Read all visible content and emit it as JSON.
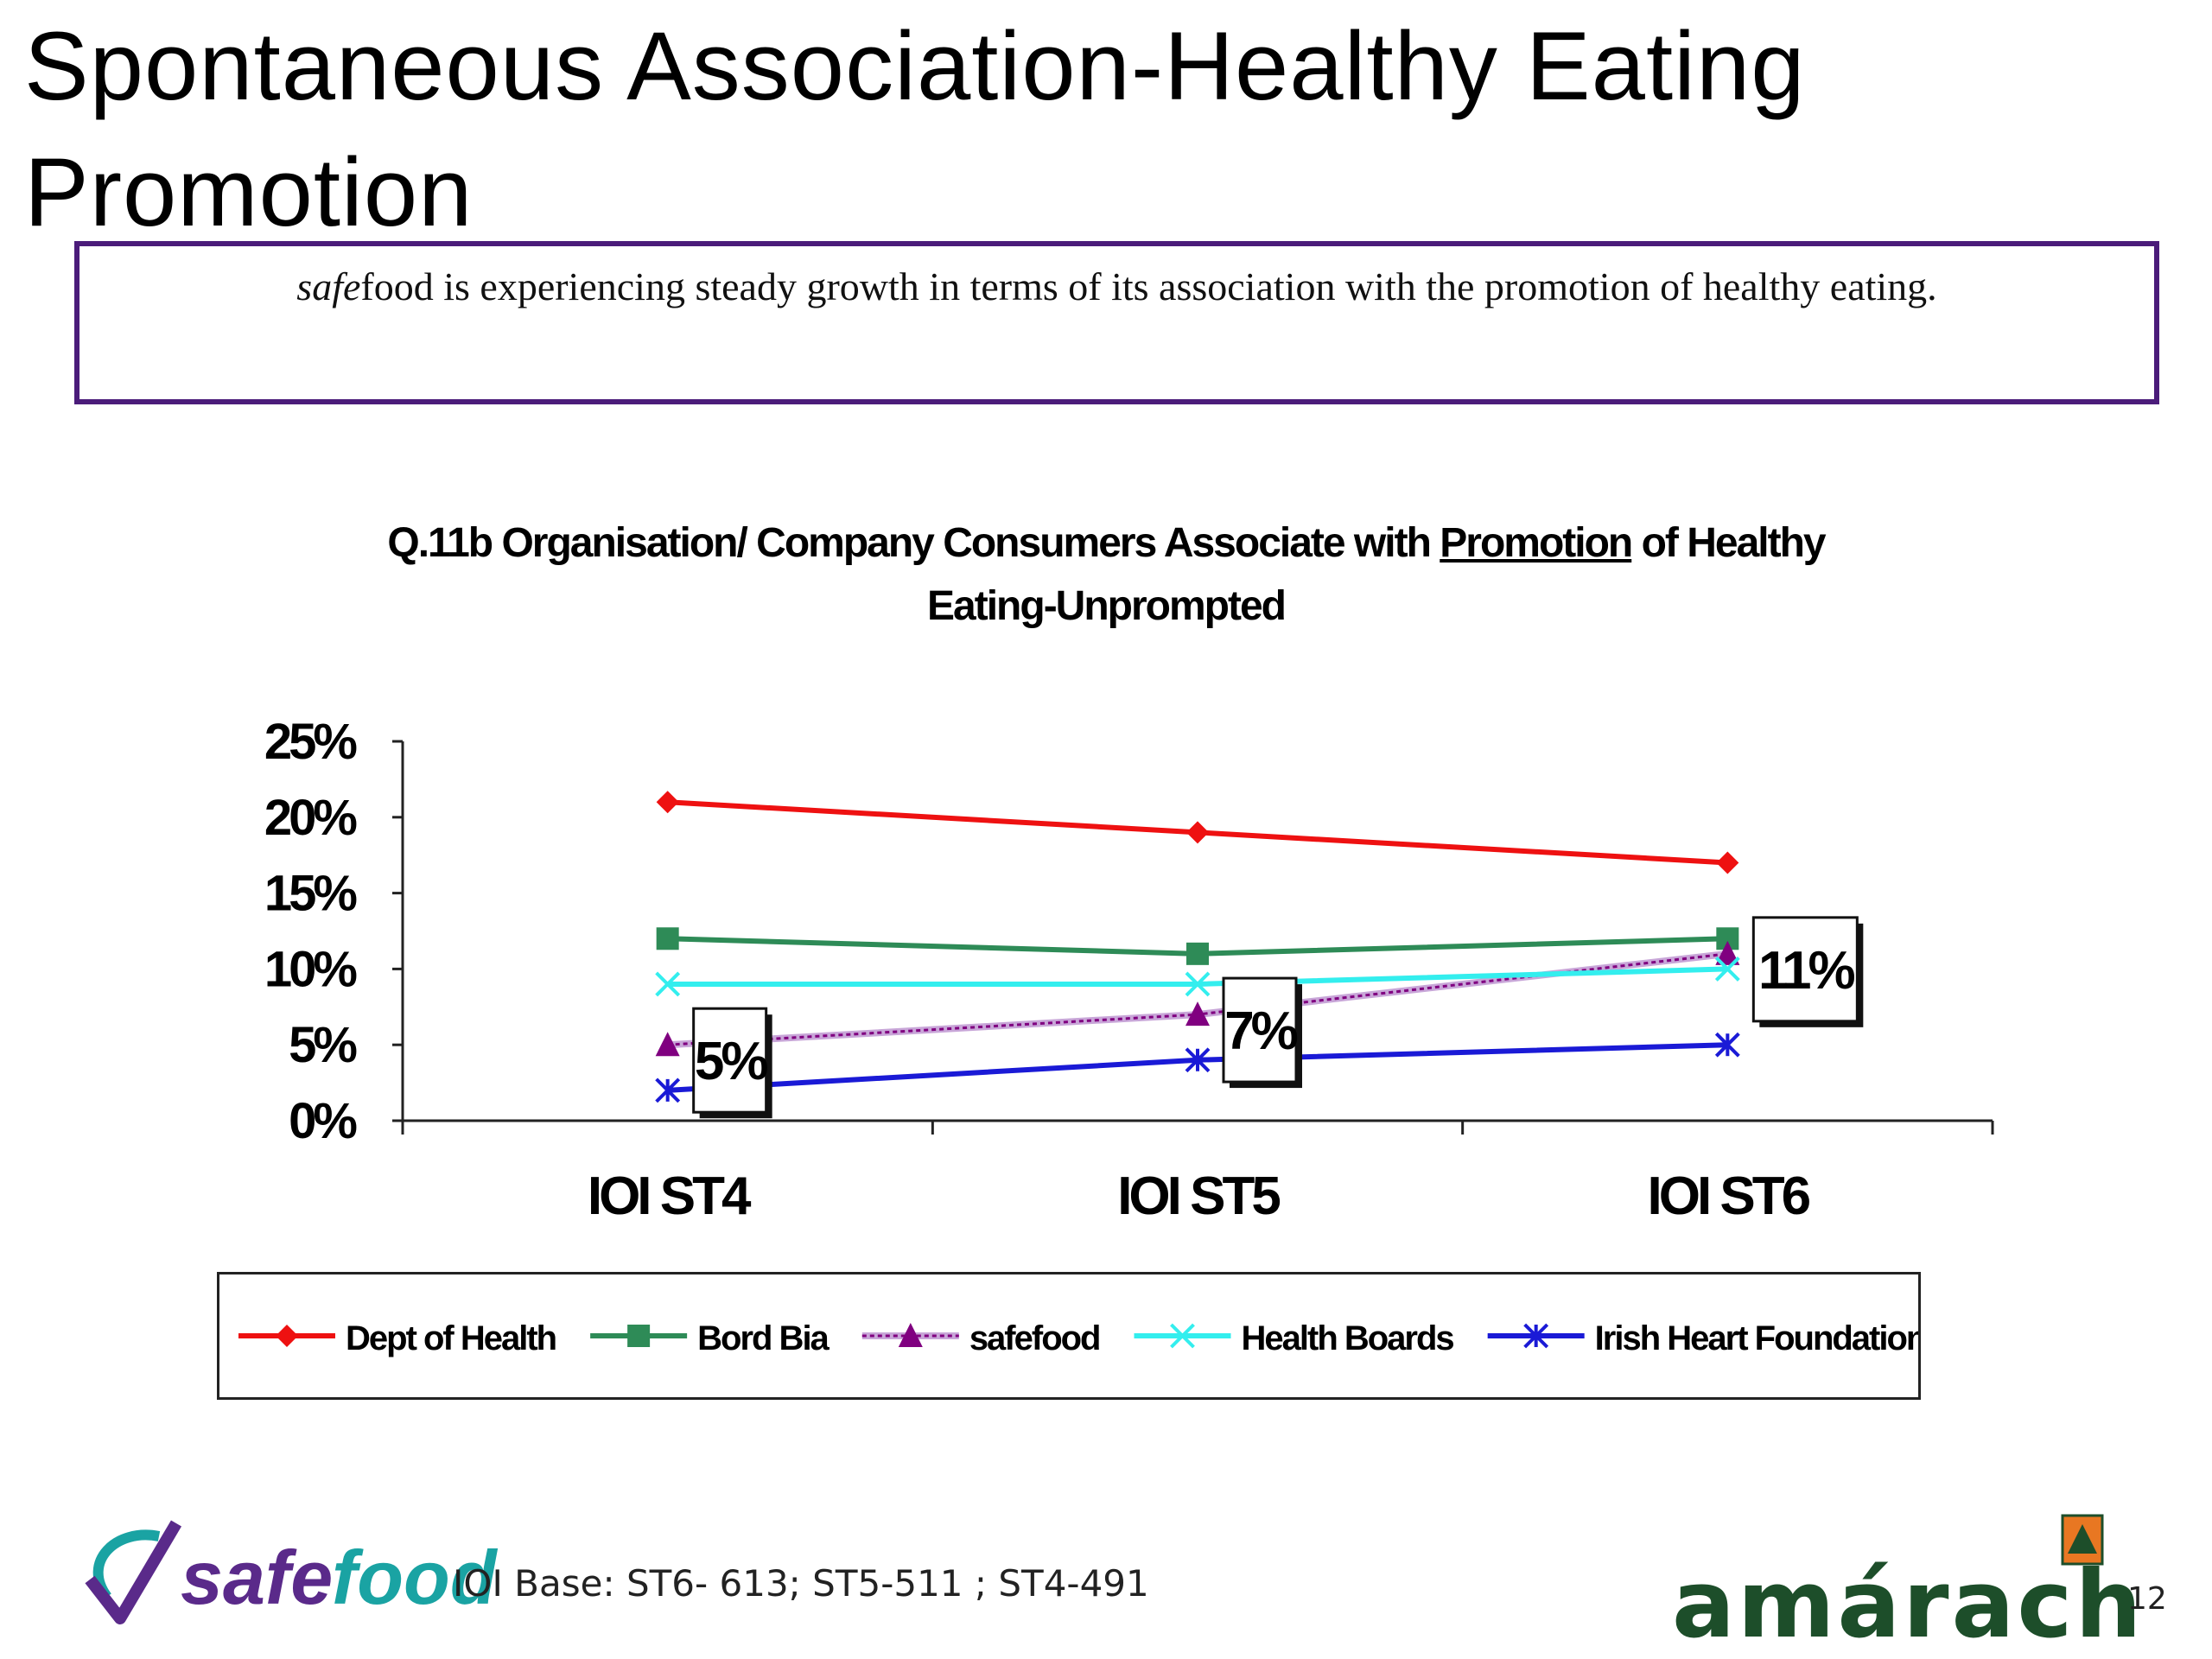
{
  "slide": {
    "title": "Spontaneous Association-Healthy Eating Promotion",
    "callout_brand": "safe",
    "callout_text": "food is experiencing steady growth in terms of its association with the promotion of healthy eating.",
    "footnote": "IOI Base: ST6- 613; ST5-511 ; ST4-491",
    "page_number": "12",
    "logo_left_text": "safefood",
    "logo_right_text": "amárach"
  },
  "chart_data": {
    "type": "line",
    "title_prefix": "Q.11b Organisation/ Company Consumers Associate with ",
    "title_underlined": "Promotion",
    "title_suffix": " of Healthy Eating-Unprompted",
    "categories": [
      "IOI ST4",
      "IOI ST5",
      "IOI ST6"
    ],
    "ylim": [
      0,
      25
    ],
    "yticks": [
      0,
      5,
      10,
      15,
      20,
      25
    ],
    "ytick_labels": [
      "0%",
      "5%",
      "10%",
      "15%",
      "20%",
      "25%"
    ],
    "legend_position": "bottom",
    "series": [
      {
        "name": "Dept of Health",
        "values": [
          21,
          19,
          17
        ],
        "color": "#ee1111",
        "marker": "diamond",
        "dashed": false
      },
      {
        "name": "Bord Bia",
        "values": [
          12,
          11,
          12
        ],
        "color": "#2e8b57",
        "marker": "square",
        "dashed": false
      },
      {
        "name": "safefood",
        "values": [
          5,
          7,
          11
        ],
        "color": "#800080",
        "marker": "triangle",
        "dashed": true
      },
      {
        "name": "Health Boards",
        "values": [
          9,
          9,
          10
        ],
        "color": "#33eeee",
        "marker": "x",
        "dashed": false
      },
      {
        "name": "Irish Heart Foundation",
        "values": [
          2,
          4,
          5
        ],
        "color": "#1a1ad6",
        "marker": "star",
        "dashed": false
      }
    ],
    "annotations": [
      {
        "category_index": 0,
        "text": "5%"
      },
      {
        "category_index": 1,
        "text": "7%"
      },
      {
        "category_index": 2,
        "text": "11%"
      }
    ]
  }
}
